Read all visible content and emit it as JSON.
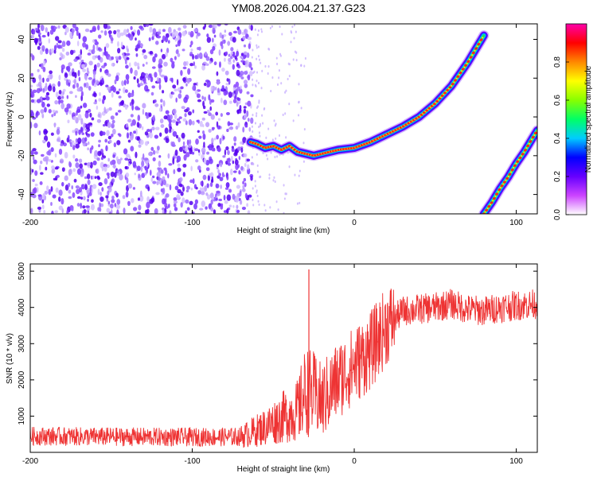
{
  "title": "YM08.2026.004.21.37.G23",
  "chart_data": [
    {
      "type": "heatmap",
      "xlabel": "Height of straight line (km)",
      "ylabel": "Frequency (Hz)",
      "xlim": [
        -200,
        113
      ],
      "ylim": [
        -50,
        48
      ],
      "xticks": [
        -200,
        -100,
        0,
        100
      ],
      "yticks": [
        -40,
        -20,
        0,
        20,
        40
      ],
      "colorbar": {
        "label": "Normalized spectral amplitude",
        "range": [
          0,
          1
        ],
        "ticks": [
          "0.0",
          "0.2",
          "0.4",
          "0.6",
          "0.8"
        ],
        "colors": [
          "#ffffff",
          "#cc44ff",
          "#6600ff",
          "#0000ff",
          "#00ccff",
          "#00ff66",
          "#88ff00",
          "#ffff00",
          "#ff8800",
          "#ff0000",
          "#ff00aa"
        ]
      },
      "noise_region_x": [
        -200,
        -63
      ],
      "sparse_region_x": [
        -63,
        -30
      ],
      "ridge_main": {
        "x": [
          -64,
          -60,
          -55,
          -50,
          -45,
          -40,
          -35,
          -30,
          -25,
          -20,
          -10,
          0,
          10,
          20,
          30,
          40,
          50,
          60,
          70,
          80
        ],
        "y": [
          -13,
          -14,
          -16,
          -15,
          -17,
          -15,
          -18,
          -19,
          -20,
          -19,
          -17,
          -16,
          -13,
          -9,
          -5,
          0,
          7,
          16,
          28,
          42
        ]
      },
      "ridge_second": {
        "x": [
          80,
          85,
          90,
          95,
          100,
          105,
          110,
          113
        ],
        "y": [
          -50,
          -44,
          -37,
          -31,
          -24,
          -18,
          -11,
          -7
        ]
      }
    },
    {
      "type": "line",
      "xlabel": "Height of straight line (km)",
      "ylabel": "SNR (10 * v/v)",
      "xlim": [
        -200,
        113
      ],
      "ylim": [
        0,
        5200
      ],
      "xticks": [
        -200,
        -100,
        0,
        100
      ],
      "yticks": [
        1000,
        2000,
        3000,
        4000,
        5000
      ],
      "color": "#ee3333",
      "envelope": {
        "x": [
          -200,
          -150,
          -100,
          -70,
          -55,
          -45,
          -35,
          -30,
          -25,
          -20,
          -10,
          0,
          10,
          20,
          30,
          40,
          50,
          60,
          70,
          80,
          90,
          100,
          113
        ],
        "y": [
          450,
          430,
          420,
          430,
          700,
          950,
          1150,
          1700,
          1600,
          1400,
          2000,
          2400,
          2800,
          3500,
          3900,
          3950,
          4000,
          4100,
          3950,
          3900,
          4000,
          4050,
          4100
        ]
      },
      "spikes": [
        {
          "x": -28,
          "y": 5050
        },
        {
          "x": -34,
          "y": 1900
        }
      ]
    }
  ]
}
